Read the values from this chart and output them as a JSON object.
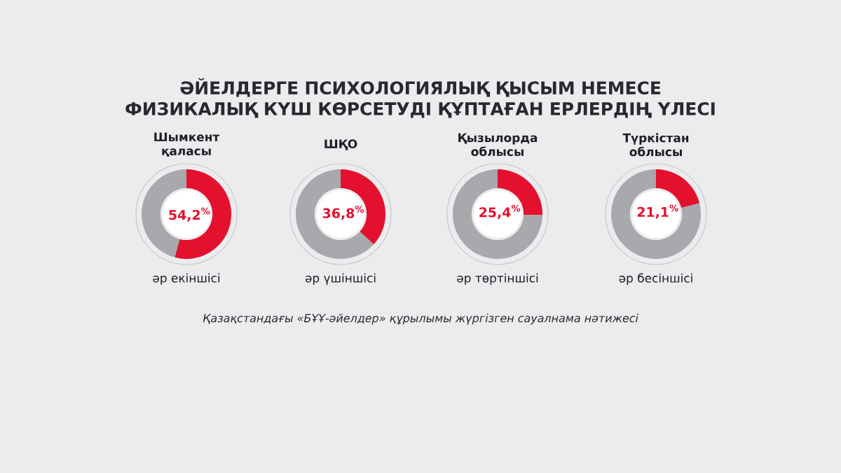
{
  "chart_data": [
    {
      "type": "other",
      "title": "ӘЙЕЛДЕРГЕ ПСИХОЛОГИЯЛЫҚ ҚЫСЫМ НЕМЕСЕ ФИЗИКАЛЫҚ КҮШ КӨРСЕТУДІ ҚҰПТАҒАН ЕРЛЕРДІҢ ҮЛЕСІ",
      "annotations": [
        "Қазақстандағы «БҰҰ-әйелдер» құрылымы жүргізген сауалнама нәтижесі"
      ]
    },
    {
      "type": "donut",
      "title": "Шымкент қаласы",
      "subtitle": "әр екіншісі",
      "categories": [
        null,
        null
      ],
      "values": [
        54.2,
        45.8
      ],
      "colors": [
        "#e3112e",
        "#a7a9ac"
      ],
      "value_labels": [
        "54,2$^{%}$",
        null
      ]
    },
    {
      "type": "donut",
      "title": "ШҚО",
      "subtitle": "әр үшіншісі",
      "categories": [
        null,
        null
      ],
      "values": [
        36.8,
        63.2
      ],
      "colors": [
        "#e3112e",
        "#a7a9ac"
      ],
      "value_labels": [
        "36,8$^{%}$",
        null
      ]
    },
    {
      "type": "donut",
      "title": "Қызылорда облысы",
      "subtitle": "әр төртіншісі",
      "categories": [
        null,
        null
      ],
      "values": [
        25.4,
        74.6
      ],
      "colors": [
        "#e3112e",
        "#a7a9ac"
      ],
      "value_labels": [
        "25,4$^{%}$",
        null
      ]
    },
    {
      "type": "donut",
      "title": "Түркістан облысы",
      "subtitle": "әр бесіншісі",
      "categories": [
        null,
        null
      ],
      "values": [
        21.1,
        78.9
      ],
      "colors": [
        "#e3112e",
        "#a7a9ac"
      ],
      "value_labels": [
        "21,1$^{%}$",
        null
      ]
    }
  ]
}
